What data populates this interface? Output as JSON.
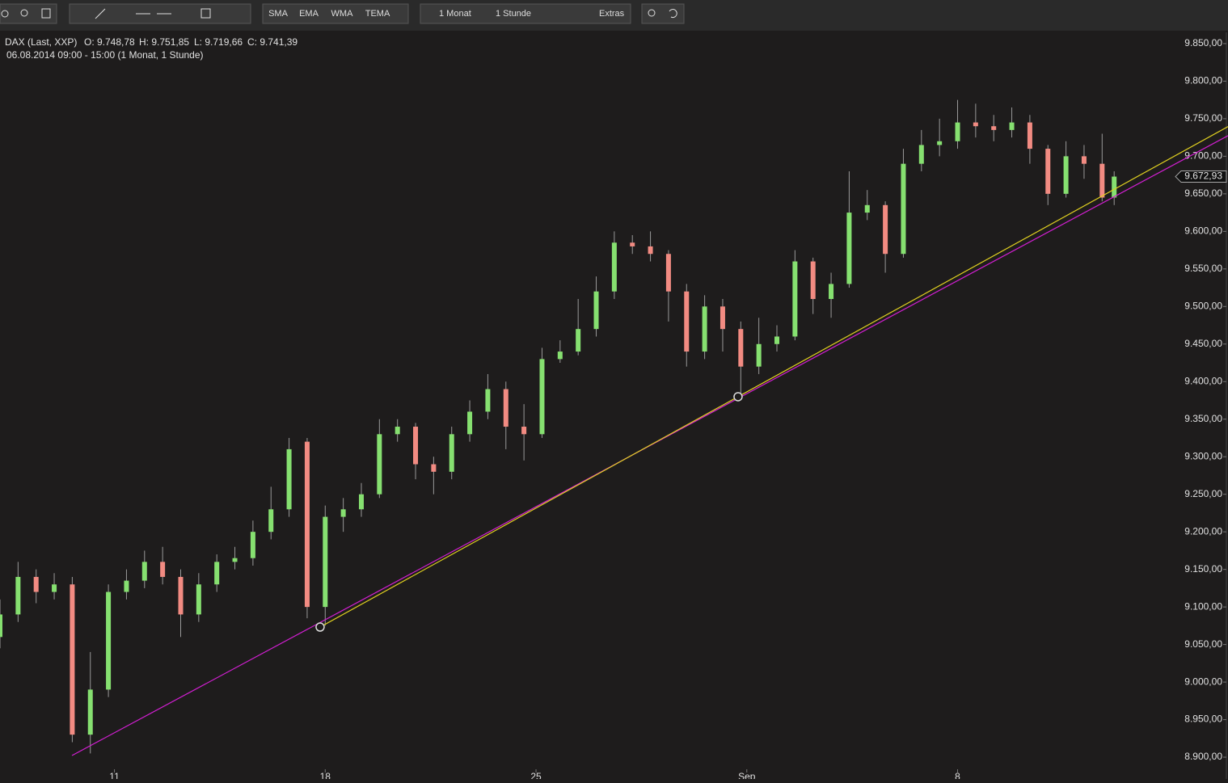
{
  "toolbar": {
    "indicators": [
      "SMA",
      "EMA",
      "WMA",
      "TEMA"
    ],
    "period": "1 Monat",
    "interval": "1 Stunde",
    "extras": "Extras"
  },
  "chart_data": {
    "type": "candlestick",
    "title": "DAX (Last, XXP)",
    "info": [
      "O: 9.748,78",
      "H: 9.751,85",
      "L: 9.719,66",
      "C: 9.741,39"
    ],
    "subtitle": "06.08.2014 09:00 - 15:00 (1 Monat, 1 Stunde)",
    "up_color": "#86e070",
    "down_color": "#f28b82",
    "x": [
      0,
      3,
      6,
      9,
      12,
      15,
      18,
      21,
      24,
      27,
      30,
      33,
      36,
      39,
      42,
      45,
      48,
      51,
      54,
      57,
      60,
      63,
      66,
      69,
      72,
      75,
      78,
      81,
      84,
      87,
      90,
      93,
      96,
      99,
      102,
      105,
      108,
      111,
      114,
      117,
      120,
      123,
      126,
      129,
      132,
      135,
      138,
      141,
      144,
      147,
      150,
      153,
      156,
      159,
      162,
      165,
      168,
      171,
      174,
      177,
      180,
      183,
      185
    ],
    "open": [
      9060,
      9090,
      9140,
      9120,
      9130,
      8930,
      8990,
      9120,
      9135,
      9160,
      9140,
      9090,
      9130,
      9160,
      9165,
      9200,
      9230,
      9320,
      9100,
      9220,
      9230,
      9250,
      9330,
      9340,
      9290,
      9280,
      9330,
      9360,
      9390,
      9340,
      9330,
      9430,
      9440,
      9470,
      9520,
      9585,
      9580,
      9570,
      9520,
      9440,
      9500,
      9470,
      9420,
      9450,
      9460,
      9560,
      9510,
      9530,
      9625,
      9635,
      9570,
      9690,
      9715,
      9720,
      9745,
      9740,
      9735,
      9745,
      9710,
      9650,
      9700,
      9690,
      9645
    ],
    "high": [
      9110,
      9160,
      9150,
      9145,
      9140,
      9040,
      9130,
      9150,
      9175,
      9180,
      9150,
      9145,
      9170,
      9180,
      9215,
      9260,
      9325,
      9325,
      9235,
      9245,
      9265,
      9350,
      9350,
      9345,
      9300,
      9340,
      9375,
      9410,
      9400,
      9370,
      9445,
      9455,
      9510,
      9540,
      9600,
      9595,
      9600,
      9575,
      9530,
      9515,
      9510,
      9480,
      9485,
      9475,
      9575,
      9565,
      9545,
      9680,
      9655,
      9640,
      9710,
      9735,
      9750,
      9775,
      9770,
      9755,
      9765,
      9755,
      9715,
      9720,
      9715,
      9730,
      9680
    ],
    "low": [
      9045,
      9080,
      9105,
      9110,
      8920,
      8905,
      8980,
      9110,
      9125,
      9130,
      9060,
      9080,
      9120,
      9150,
      9155,
      9190,
      9220,
      9085,
      9075,
      9200,
      9220,
      9245,
      9320,
      9270,
      9250,
      9270,
      9320,
      9350,
      9310,
      9295,
      9325,
      9425,
      9435,
      9460,
      9510,
      9570,
      9560,
      9480,
      9420,
      9430,
      9440,
      9380,
      9410,
      9440,
      9455,
      9490,
      9485,
      9525,
      9615,
      9545,
      9565,
      9680,
      9700,
      9710,
      9725,
      9720,
      9725,
      9690,
      9635,
      9645,
      9670,
      9640,
      9635
    ],
    "close": [
      9090,
      9140,
      9120,
      9130,
      8930,
      8990,
      9120,
      9135,
      9160,
      9140,
      9090,
      9130,
      9160,
      9165,
      9200,
      9230,
      9310,
      9100,
      9220,
      9230,
      9250,
      9330,
      9340,
      9290,
      9280,
      9330,
      9360,
      9390,
      9340,
      9330,
      9430,
      9440,
      9470,
      9520,
      9585,
      9580,
      9570,
      9520,
      9440,
      9500,
      9470,
      9420,
      9450,
      9460,
      9560,
      9510,
      9530,
      9625,
      9635,
      9570,
      9690,
      9715,
      9720,
      9745,
      9740,
      9735,
      9745,
      9710,
      9650,
      9700,
      9690,
      9645,
      9672.93
    ],
    "last_price": {
      "value": 9672.93,
      "label": "9.672,93"
    },
    "xlim": [
      0,
      203.9
    ],
    "xticks": [
      {
        "value": 19,
        "label": "11"
      },
      {
        "value": 54,
        "label": "18"
      },
      {
        "value": 89,
        "label": "25"
      },
      {
        "value": 124,
        "label": "Sep"
      },
      {
        "value": 159,
        "label": "8"
      }
    ],
    "ylim": [
      8871,
      9865
    ],
    "yticks": [
      {
        "value": 8900,
        "label": "8.900,00"
      },
      {
        "value": 8950,
        "label": "8.950,00"
      },
      {
        "value": 9000,
        "label": "9.000,00"
      },
      {
        "value": 9050,
        "label": "9.050,00"
      },
      {
        "value": 9100,
        "label": "9.100,00"
      },
      {
        "value": 9150,
        "label": "9.150,00"
      },
      {
        "value": 9200,
        "label": "9.200,00"
      },
      {
        "value": 9250,
        "label": "9.250,00"
      },
      {
        "value": 9300,
        "label": "9.300,00"
      },
      {
        "value": 9350,
        "label": "9.350,00"
      },
      {
        "value": 9400,
        "label": "9.400,00"
      },
      {
        "value": 9450,
        "label": "9.450,00"
      },
      {
        "value": 9500,
        "label": "9.500,00"
      },
      {
        "value": 9550,
        "label": "9.550,00"
      },
      {
        "value": 9600,
        "label": "9.600,00"
      },
      {
        "value": 9650,
        "label": "9.650,00"
      },
      {
        "value": 9700,
        "label": "9.700,00"
      },
      {
        "value": 9750,
        "label": "9.750,00"
      },
      {
        "value": 9800,
        "label": "9.800,00"
      },
      {
        "value": 9850,
        "label": "9.850,00"
      }
    ],
    "trendlines": [
      {
        "color": "#d21fd2",
        "x": [
          11.95,
          203.9
        ],
        "y": [
          8902.2,
          9727.4
        ]
      },
      {
        "color": "#e0d020",
        "x": [
          53.15,
          122.55,
          203.9
        ],
        "y": [
          9073.2,
          9379.9,
          9739.5
        ]
      }
    ]
  }
}
